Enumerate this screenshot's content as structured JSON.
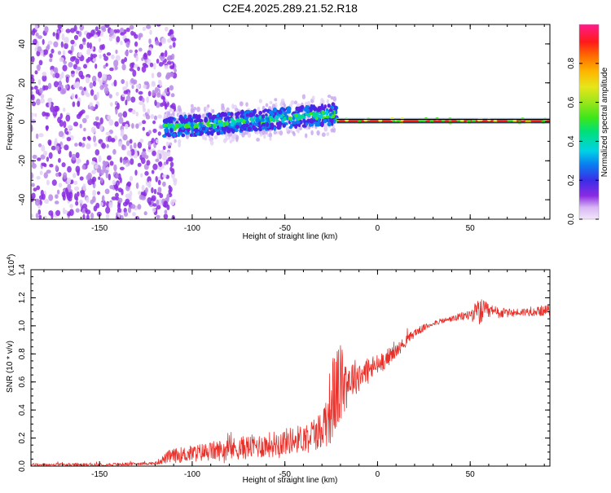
{
  "title": "C2E4.2025.289.21.52.R18",
  "colors": {
    "snr_line": "#e8302a",
    "zero_line": "#000000",
    "axis": "#000000",
    "spectrogram_cloud": "#8a2be2",
    "background": "#ffffff"
  },
  "chart_data": [
    {
      "type": "heatmap",
      "title": "C2E4.2025.289.21.52.R18",
      "xlabel": "Height of straight line (km)",
      "ylabel": "Frequency (Hz)",
      "xlim": [
        -187,
        93
      ],
      "ylim": [
        -50,
        50
      ],
      "xticks": [
        -150,
        -100,
        -50,
        0,
        50
      ],
      "yticks": [
        -40,
        -20,
        0,
        20,
        40
      ],
      "xtick_labels": [
        "-150",
        "-100",
        "-50",
        "0",
        "50"
      ],
      "ytick_labels": [
        "-40",
        "-20",
        "0",
        "20",
        "40"
      ],
      "noise_region": {
        "x_from": -187,
        "x_to": -115,
        "freq_from": -50,
        "freq_to": 50
      },
      "signal_band": {
        "x_from": -115,
        "x_to": -22,
        "freq_start": -3,
        "freq_end": 4,
        "halfwidth_hz": 5
      },
      "tone_line": {
        "x_from": -22,
        "x_to": 93,
        "freq": 0.5
      },
      "colorbar": {
        "label": "Normalized spectral amplitude",
        "range": [
          0,
          1
        ],
        "ticks": [
          0.0,
          0.2,
          0.4,
          0.6,
          0.8
        ],
        "tick_labels": [
          "0.0",
          "0.2",
          "0.4",
          "0.6",
          "0.8"
        ]
      }
    },
    {
      "type": "line",
      "xlabel": "Height of straight line (km)",
      "ylabel": "SNR (10 * v/v)",
      "scale_label": "(x10",
      "scale_exp": "4",
      "scale_close": ")",
      "xlim": [
        -187,
        93
      ],
      "ylim": [
        0,
        1.4
      ],
      "xticks": [
        -150,
        -100,
        -50,
        0,
        50
      ],
      "yticks": [
        0.0,
        0.2,
        0.4,
        0.6,
        0.8,
        1.0,
        1.2,
        1.4
      ],
      "xtick_labels": [
        "-150",
        "-100",
        "-50",
        "0",
        "50"
      ],
      "ytick_labels": [
        "0.0",
        "0.2",
        "0.4",
        "0.6",
        "0.8",
        "1.0",
        "1.2",
        "1.4"
      ],
      "series": [
        {
          "name": "SNR",
          "x": [
            -187,
            -150,
            -120,
            -112,
            -100,
            -80,
            -60,
            -40,
            -30,
            -25,
            -22,
            -18,
            -15,
            -10,
            -5,
            0,
            10,
            20,
            30,
            40,
            50,
            55,
            60,
            70,
            80,
            93
          ],
          "trend": [
            0.01,
            0.01,
            0.02,
            0.07,
            0.09,
            0.12,
            0.15,
            0.2,
            0.26,
            0.45,
            0.55,
            0.6,
            0.62,
            0.65,
            0.68,
            0.72,
            0.82,
            0.95,
            1.02,
            1.05,
            1.08,
            1.1,
            1.1,
            1.09,
            1.1,
            1.11
          ],
          "noise": [
            0.01,
            0.01,
            0.01,
            0.05,
            0.06,
            0.08,
            0.09,
            0.1,
            0.14,
            0.3,
            0.33,
            0.25,
            0.14,
            0.12,
            0.1,
            0.08,
            0.05,
            0.03,
            0.02,
            0.02,
            0.04,
            0.1,
            0.06,
            0.03,
            0.03,
            0.04
          ]
        }
      ]
    }
  ]
}
